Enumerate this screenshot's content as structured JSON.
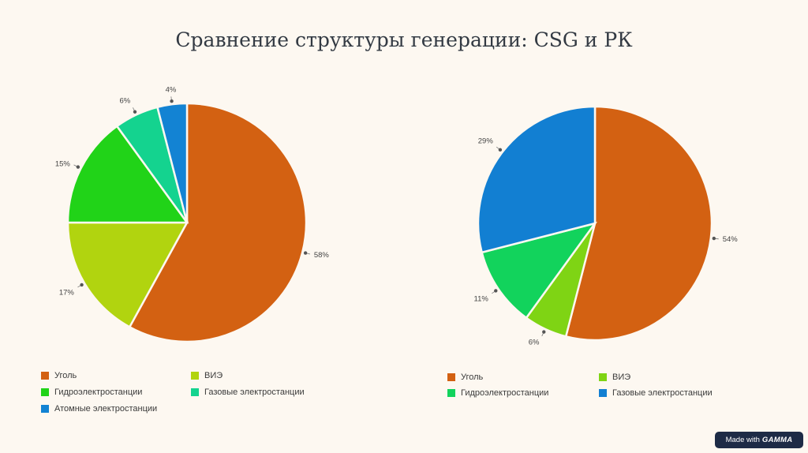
{
  "title": "Сравнение структуры генерации: CSG и РК",
  "badge": {
    "text": "Made with",
    "brand": "GAMMA"
  },
  "chart_data": [
    {
      "type": "pie",
      "title": "",
      "slices": [
        {
          "label": "Уголь",
          "value": 58,
          "label_text": "58%",
          "color": "#d36112"
        },
        {
          "label": "ВИЭ",
          "value": 17,
          "label_text": "17%",
          "color": "#b1d40f"
        },
        {
          "label": "Гидроэлектростанции",
          "value": 15,
          "label_text": "15%",
          "color": "#21d318"
        },
        {
          "label": "Газовые электростанции",
          "value": 6,
          "label_text": "6%",
          "color": "#14d38f"
        },
        {
          "label": "Атомные электростанции",
          "value": 4,
          "label_text": "4%",
          "color": "#1383d3"
        }
      ],
      "legend_position": "bottom"
    },
    {
      "type": "pie",
      "title": "",
      "slices": [
        {
          "label": "Уголь",
          "value": 54,
          "label_text": "54%",
          "color": "#d36112"
        },
        {
          "label": "ВИЭ",
          "value": 6,
          "label_text": "6%",
          "color": "#7fd414"
        },
        {
          "label": "Гидроэлектростанции",
          "value": 11,
          "label_text": "11%",
          "color": "#12d35c"
        },
        {
          "label": "Газовые электростанции",
          "value": 29,
          "label_text": "29%",
          "color": "#127fd2"
        }
      ],
      "legend_position": "bottom"
    }
  ]
}
